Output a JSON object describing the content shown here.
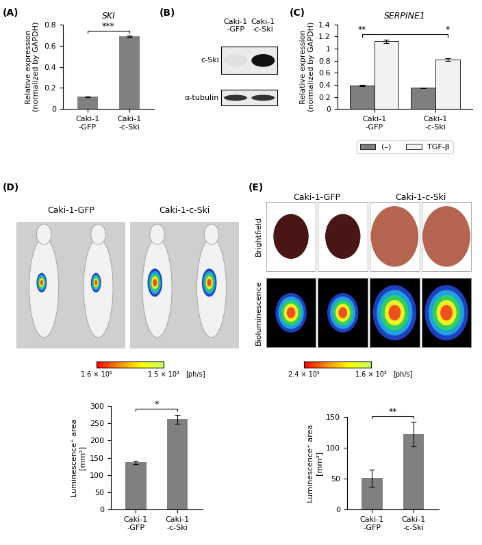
{
  "panel_labels": [
    "(A)",
    "(B)",
    "(C)",
    "(D)",
    "(E)"
  ],
  "chart_data": [
    {
      "type": "bar",
      "title": "SKI",
      "y_label": "Relative expression\n(normalized by GAPDH)",
      "categories": [
        "Caki-1\n-GFP",
        "Caki-1\n-c-Ski"
      ],
      "values": [
        0.115,
        0.69
      ],
      "errors": [
        0.002,
        0.005
      ],
      "color": "#808080",
      "ylim": [
        0,
        0.8
      ],
      "yticks": [
        0,
        0.2,
        0.4,
        0.6,
        0.8
      ],
      "significance": [
        {
          "from": 0,
          "to": 1,
          "label": "***"
        }
      ]
    },
    {
      "type": "bar",
      "title": "SERPINE1",
      "y_label": "Relative expression\n(normalized by GAPDH)",
      "categories": [
        "Caki-1\n-GFP",
        "Caki-1\n-c-Ski"
      ],
      "series": [
        {
          "name": "(–)",
          "color": "#7f7f7f",
          "values": [
            0.39,
            0.35
          ],
          "errors": [
            0.01,
            0.005
          ]
        },
        {
          "name": "TGF-β",
          "color": "#f2f2f2",
          "values": [
            1.12,
            0.82
          ],
          "errors": [
            0.03,
            0.02
          ]
        }
      ],
      "ylim": [
        0,
        1.4
      ],
      "yticks": [
        0,
        0.2,
        0.4,
        0.6,
        0.8,
        1,
        1.2,
        1.4
      ],
      "legend": "below",
      "significance": [
        {
          "from": 0,
          "to": 3,
          "labels": [
            "**",
            "*"
          ]
        }
      ]
    },
    {
      "type": "bar",
      "y_label": "Luminescence⁺ area\n[mm²]",
      "categories": [
        "Caki-1\n-GFP",
        "Caki-1\n-c-Ski"
      ],
      "values": [
        137,
        262
      ],
      "errors": [
        5,
        13
      ],
      "color": "#808080",
      "ylim": [
        0,
        300
      ],
      "yticks": [
        0,
        50,
        100,
        150,
        200,
        250,
        300
      ],
      "significance": [
        {
          "from": 0,
          "to": 1,
          "label": "*"
        }
      ]
    },
    {
      "type": "bar",
      "y_label": "Luminescence⁺ area\n[mm²]",
      "categories": [
        "Caki-1\n-GFP",
        "Caki-1\n-c-Ski"
      ],
      "values": [
        51,
        122
      ],
      "errors": [
        14,
        20
      ],
      "color": "#808080",
      "ylim": [
        0,
        150
      ],
      "yticks": [
        0,
        50,
        100,
        150
      ],
      "significance": [
        {
          "from": 0,
          "to": 1,
          "label": "**"
        }
      ]
    }
  ],
  "western_blot": {
    "lanes": [
      "Caki-1\n-GFP",
      "Caki-1\n-c-Ski"
    ],
    "rows": [
      "c-Ski",
      "α-tubulin"
    ]
  },
  "imaging_d": {
    "groups": [
      "Caki-1-GFP",
      "Caki-1-c-Ski"
    ],
    "scale": {
      "max": "1.6 × 10⁵",
      "min": "1.5 × 10³",
      "unit": "[ph/s]"
    }
  },
  "imaging_e": {
    "groups": [
      "Caki-1-GFP",
      "Caki-1-c-Ski"
    ],
    "rows": [
      "Brightfield",
      "Bioluminescence"
    ],
    "scale": {
      "max": "2.4 × 10⁵",
      "min": "1.6 × 10³",
      "unit": "[ph/s]"
    }
  }
}
